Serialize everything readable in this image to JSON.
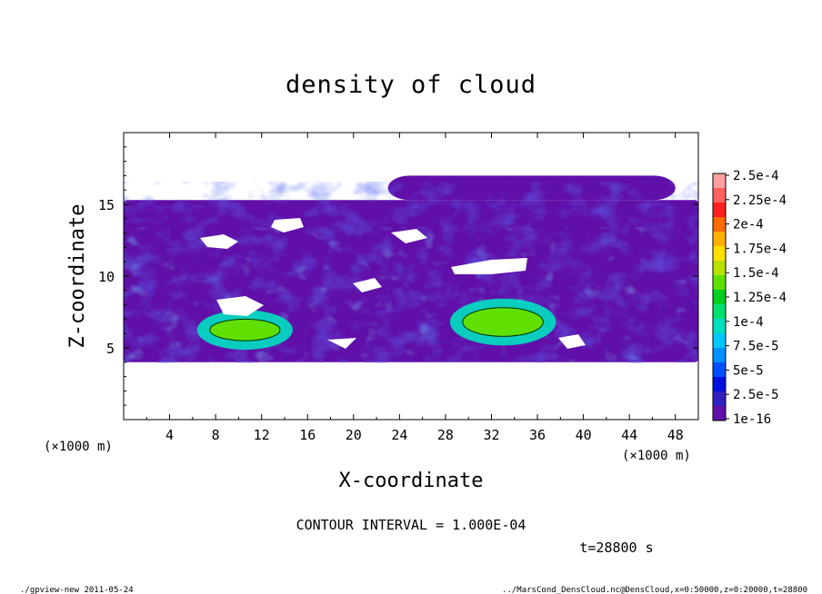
{
  "chart_data": {
    "type": "heatmap",
    "title": "density of cloud",
    "xlabel": "X-coordinate",
    "ylabel": "Z-coordinate",
    "x_unit": "(×1000 m)",
    "y_unit": "(×1000 m)",
    "xlim": [
      0,
      50
    ],
    "ylim": [
      0,
      20
    ],
    "x_ticks": [
      "4",
      "8",
      "12",
      "16",
      "20",
      "24",
      "28",
      "32",
      "36",
      "40",
      "44",
      "48"
    ],
    "y_ticks": [
      "5",
      "10",
      "15"
    ],
    "colorbar": {
      "labels": [
        "2.5e-4",
        "2.25e-4",
        "2e-4",
        "1.75e-4",
        "1.5e-4",
        "1.25e-4",
        "1e-4",
        "7.5e-5",
        "5e-5",
        "2.5e-5",
        "1e-16"
      ],
      "colors": [
        "#ffa0a0",
        "#ff6060",
        "#ff2020",
        "#ff6a00",
        "#ffb000",
        "#ffe000",
        "#b8e000",
        "#60e000",
        "#00d020",
        "#00e070",
        "#00e0c0",
        "#00c8ff",
        "#0090ff",
        "#0050ff",
        "#0010e0",
        "#3020c0",
        "#6010a8"
      ]
    },
    "regions": [
      {
        "level": "1e-16",
        "x_range": [
          0,
          50
        ],
        "z_range": [
          4.0,
          15.3
        ]
      },
      {
        "level": "1e-16",
        "x_range": [
          23,
          48
        ],
        "z_range": [
          15.3,
          17.0
        ]
      },
      {
        "level": "1.0e-4",
        "x_range": [
          7.5,
          13.6
        ],
        "z_range": [
          5.5,
          7.0
        ]
      },
      {
        "level": "1.0e-4",
        "x_range": [
          29.5,
          36.5
        ],
        "z_range": [
          5.8,
          7.8
        ]
      }
    ],
    "contour_interval": "CONTOUR INTERVAL = 1.000E-04",
    "time_label": "t=28800 s"
  },
  "footer": {
    "left": "./gpview-new  2011-05-24",
    "right": "../MarsCond_DensCloud.nc@DensCloud,x=0:50000,z=0:20000,t=28800"
  }
}
